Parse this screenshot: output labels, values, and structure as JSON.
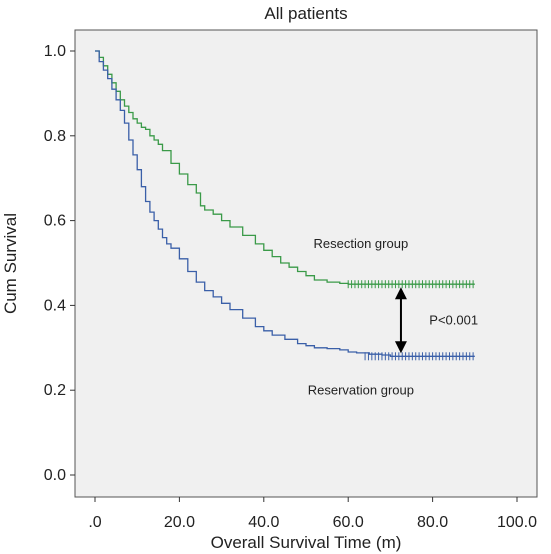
{
  "chart_data": {
    "type": "line",
    "title": "All patients",
    "xlabel": "Overall Survival Time (m)",
    "ylabel": "Cum Survival",
    "xlim": [
      0,
      100
    ],
    "ylim": [
      0,
      1
    ],
    "x_ticks": [
      ".0",
      "20.0",
      "40.0",
      "60.0",
      "80.0",
      "100.0"
    ],
    "y_ticks": [
      "0.0",
      "0.2",
      "0.4",
      "0.6",
      "0.8",
      "1.0"
    ],
    "plot_background": "#f0f0f0",
    "series": [
      {
        "name": "Resection group",
        "color": "#3a9a48",
        "censor_from": 60,
        "censor_to": 90,
        "x": [
          0,
          1,
          2,
          3,
          4,
          5,
          6,
          7,
          8,
          9,
          10,
          11,
          12,
          13,
          14,
          15,
          16,
          18,
          20,
          22,
          24,
          25,
          26,
          28,
          30,
          32,
          35,
          38,
          40,
          42,
          44,
          46,
          48,
          50,
          52,
          55,
          58,
          60,
          65,
          70,
          75,
          80,
          85,
          90
        ],
        "y": [
          1.0,
          0.985,
          0.965,
          0.945,
          0.925,
          0.905,
          0.885,
          0.87,
          0.855,
          0.84,
          0.83,
          0.82,
          0.815,
          0.8,
          0.79,
          0.78,
          0.765,
          0.735,
          0.71,
          0.685,
          0.665,
          0.635,
          0.625,
          0.615,
          0.6,
          0.585,
          0.565,
          0.545,
          0.53,
          0.515,
          0.5,
          0.49,
          0.48,
          0.47,
          0.46,
          0.455,
          0.452,
          0.45,
          0.45,
          0.45,
          0.45,
          0.45,
          0.45,
          0.45
        ]
      },
      {
        "name": "Reservation group",
        "color": "#3a5fa8",
        "censor_from": 64,
        "censor_to": 90,
        "x": [
          0,
          1,
          2,
          3,
          4,
          5,
          6,
          7,
          8,
          9,
          10,
          11,
          12,
          13,
          14,
          15,
          16,
          17,
          18,
          20,
          22,
          24,
          26,
          28,
          30,
          32,
          35,
          38,
          40,
          42,
          45,
          48,
          50,
          52,
          55,
          58,
          60,
          62,
          65,
          68,
          70,
          72,
          75,
          80,
          85,
          90
        ],
        "y": [
          1.0,
          0.975,
          0.955,
          0.935,
          0.91,
          0.885,
          0.86,
          0.83,
          0.79,
          0.755,
          0.72,
          0.68,
          0.645,
          0.62,
          0.6,
          0.58,
          0.56,
          0.545,
          0.535,
          0.51,
          0.48,
          0.455,
          0.435,
          0.42,
          0.405,
          0.39,
          0.37,
          0.35,
          0.34,
          0.33,
          0.32,
          0.31,
          0.305,
          0.3,
          0.298,
          0.295,
          0.29,
          0.288,
          0.285,
          0.283,
          0.28,
          0.28,
          0.28,
          0.28,
          0.28,
          0.28
        ]
      }
    ],
    "annotations": [
      {
        "text": "Resection group",
        "x": 63,
        "y": 0.535
      },
      {
        "text": "Reservation group",
        "x": 63,
        "y": 0.19
      },
      {
        "text": "P<0.001",
        "x": 85,
        "y": 0.355
      }
    ],
    "arrow": {
      "x": 72.5,
      "y_from": 0.45,
      "y_to": 0.28
    }
  }
}
